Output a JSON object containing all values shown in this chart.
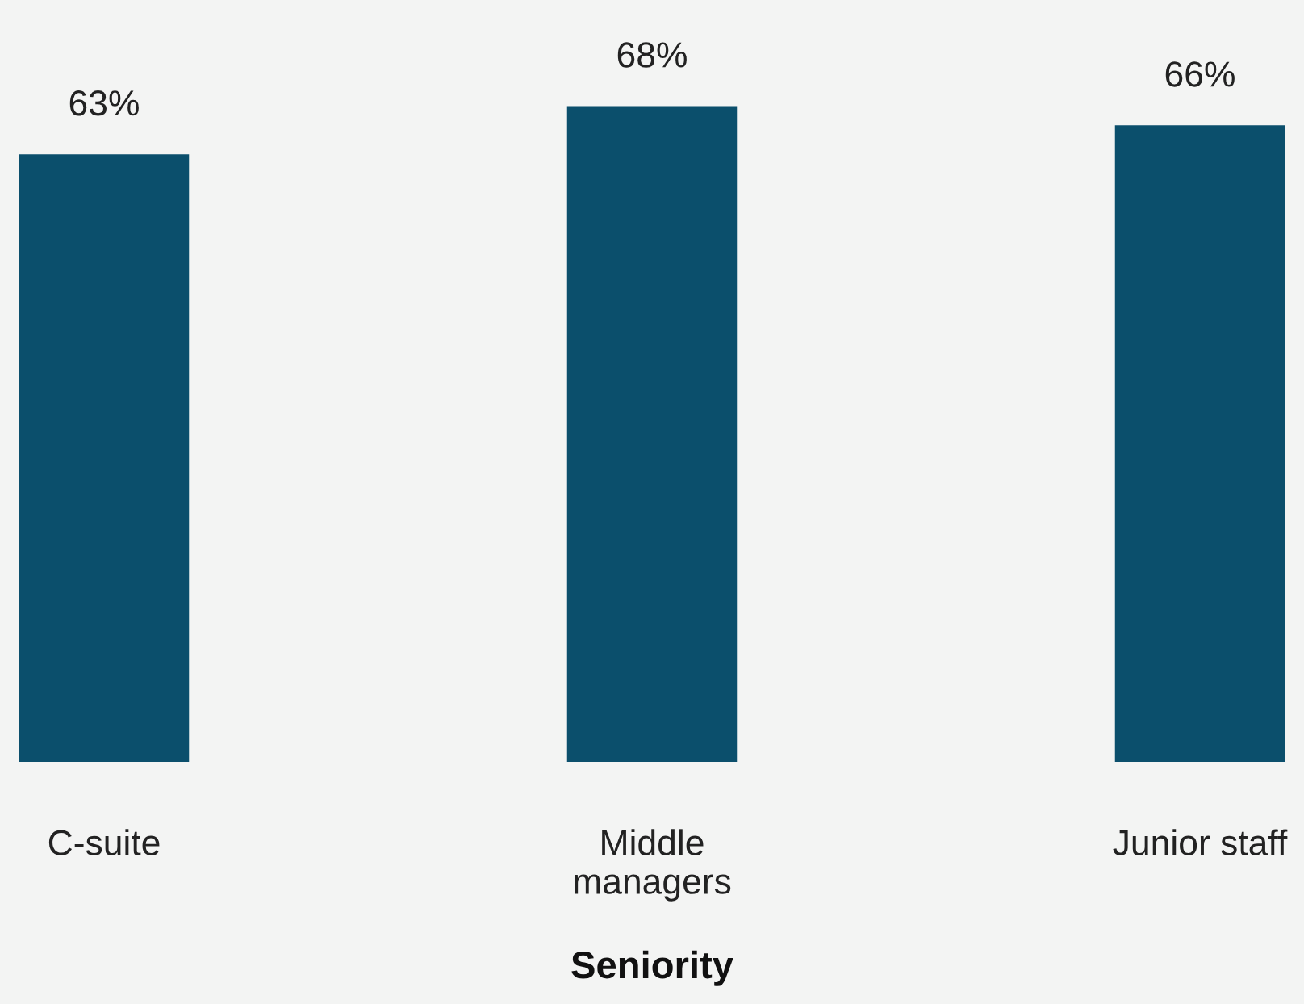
{
  "chart_data": {
    "type": "bar",
    "xlabel": "Seniority",
    "categories": [
      "C-suite",
      "Middle\nmanagers",
      "Junior staff"
    ],
    "values": [
      63,
      68,
      66
    ],
    "value_labels": [
      "63%",
      "68%",
      "66%"
    ],
    "color": "#0b4f6c",
    "ylim": [
      0,
      79
    ],
    "tick_labels": "x",
    "grid": false
  }
}
